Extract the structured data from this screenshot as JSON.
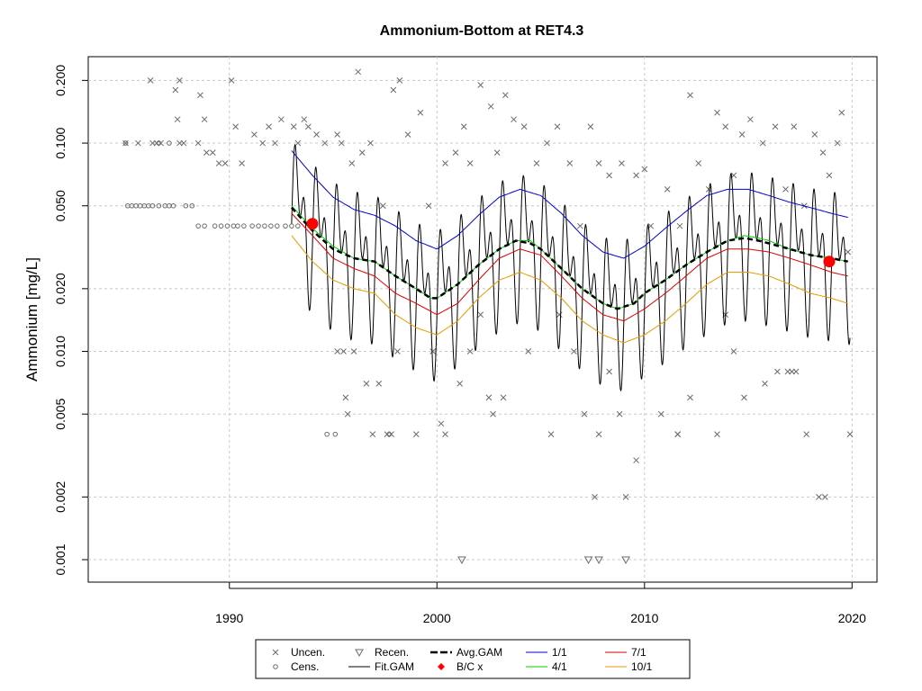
{
  "chart_data": {
    "type": "scatter",
    "title": "Ammonium-Bottom at RET4.3",
    "xlabel": "",
    "ylabel": "Ammonium [mg/L]",
    "y_scale": "log",
    "xlim": [
      1983.2,
      2021.2
    ],
    "ylim": [
      0.00078,
      0.26
    ],
    "grid": true,
    "legend_position": "bottom-center",
    "x_ticks": [
      1990,
      2000,
      2010,
      2020
    ],
    "x_tick_labels": [
      "1990",
      "2000",
      "2010",
      "2020"
    ],
    "y_ticks": [
      0.001,
      0.002,
      0.005,
      0.01,
      0.02,
      0.05,
      0.1,
      0.2
    ],
    "y_tick_labels": [
      "0.001",
      "0.002",
      "0.005",
      "0.010",
      "0.020",
      "0.050",
      "0.100",
      "0.200"
    ],
    "colors": {
      "uncen": "#6b6b6b",
      "fit_gam": "#000000",
      "avg_gam": "#000000",
      "bc": "#ff0000",
      "jan1": "#0000cc",
      "apr1": "#00cc00",
      "jul1": "#dd0000",
      "oct1": "#e89a00",
      "grid": "#c8c8c8"
    },
    "legend": [
      {
        "label": "Uncen.",
        "symbol": "x",
        "color": "#6b6b6b"
      },
      {
        "label": "Cens.",
        "symbol": "o",
        "color": "#6b6b6b"
      },
      {
        "label": "Recen.",
        "symbol": "triangle-down",
        "color": "#6b6b6b"
      },
      {
        "label": "Fit.GAM",
        "symbol": "line",
        "color": "#000000"
      },
      {
        "label": "Avg.GAM",
        "symbol": "dash-line",
        "color": "#000000"
      },
      {
        "label": "B/C x",
        "symbol": "diamond",
        "color": "#ff0000"
      },
      {
        "label": "1/1",
        "symbol": "line",
        "color": "#0000cc"
      },
      {
        "label": "4/1",
        "symbol": "line",
        "color": "#00cc00"
      },
      {
        "label": "7/1",
        "symbol": "line",
        "color": "#dd0000"
      },
      {
        "label": "10/1",
        "symbol": "line",
        "color": "#e89a00"
      }
    ],
    "uncensored": [
      [
        1986.2,
        0.2
      ],
      [
        1987.4,
        0.18
      ],
      [
        1987.6,
        0.2
      ],
      [
        1988.6,
        0.17
      ],
      [
        1990.1,
        0.2
      ],
      [
        1987.5,
        0.13
      ],
      [
        1988.8,
        0.13
      ],
      [
        1985,
        0.1
      ],
      [
        1985.6,
        0.1
      ],
      [
        1986.3,
        0.1
      ],
      [
        1986.5,
        0.1
      ],
      [
        1986.7,
        0.1
      ],
      [
        1987.6,
        0.1
      ],
      [
        1987.8,
        0.1
      ],
      [
        1988.5,
        0.1
      ],
      [
        1988.9,
        0.09
      ],
      [
        1989.2,
        0.09
      ],
      [
        1989.5,
        0.08
      ],
      [
        1989.8,
        0.08
      ],
      [
        1990.3,
        0.12
      ],
      [
        1990.6,
        0.08
      ],
      [
        1991.2,
        0.11
      ],
      [
        1991.6,
        0.1
      ],
      [
        1991.9,
        0.12
      ],
      [
        1992.2,
        0.1
      ],
      [
        1992.5,
        0.13
      ],
      [
        1993.1,
        0.12
      ],
      [
        1993.3,
        0.1
      ],
      [
        1993.6,
        0.13
      ],
      [
        1993.8,
        0.12
      ],
      [
        1994.2,
        0.11
      ],
      [
        1994.6,
        0.1
      ],
      [
        1995.2,
        0.11
      ],
      [
        1995.4,
        0.1
      ],
      [
        1995.9,
        0.08
      ],
      [
        1996.2,
        0.22
      ],
      [
        1996.4,
        0.09
      ],
      [
        1996.8,
        0.1
      ],
      [
        1997.4,
        0.05
      ],
      [
        1997.9,
        0.18
      ],
      [
        1998.2,
        0.2
      ],
      [
        1998.6,
        0.11
      ],
      [
        1999.2,
        0.14
      ],
      [
        1999.6,
        0.05
      ],
      [
        2000.4,
        0.08
      ],
      [
        2000.9,
        0.09
      ],
      [
        2001.3,
        0.12
      ],
      [
        2001.6,
        0.08
      ],
      [
        2002.1,
        0.19
      ],
      [
        2002.6,
        0.15
      ],
      [
        2002.9,
        0.09
      ],
      [
        2003.3,
        0.17
      ],
      [
        2003.7,
        0.13
      ],
      [
        2004.2,
        0.12
      ],
      [
        2004.8,
        0.08
      ],
      [
        2005.3,
        0.1
      ],
      [
        2005.8,
        0.12
      ],
      [
        2006.4,
        0.08
      ],
      [
        2006.9,
        0.04
      ],
      [
        2007.4,
        0.12
      ],
      [
        2007.8,
        0.08
      ],
      [
        2008.3,
        0.07
      ],
      [
        2008.9,
        0.08
      ],
      [
        2009.6,
        0.07
      ],
      [
        2010,
        0.075
      ],
      [
        2010.3,
        0.04
      ],
      [
        2011.1,
        0.06
      ],
      [
        2011.7,
        0.04
      ],
      [
        2012.2,
        0.17
      ],
      [
        2012.6,
        0.08
      ],
      [
        2013.1,
        0.06
      ],
      [
        2013.5,
        0.14
      ],
      [
        2013.9,
        0.12
      ],
      [
        2014.3,
        0.07
      ],
      [
        2014.7,
        0.11
      ],
      [
        2015.1,
        0.13
      ],
      [
        2015.7,
        0.1
      ],
      [
        2016.3,
        0.12
      ],
      [
        2016.8,
        0.06
      ],
      [
        2017.2,
        0.12
      ],
      [
        2017.7,
        0.05
      ],
      [
        2018.2,
        0.11
      ],
      [
        2018.6,
        0.09
      ],
      [
        2018.9,
        0.07
      ],
      [
        2019.3,
        0.1
      ],
      [
        2019.5,
        0.14
      ],
      [
        2019.8,
        0.03
      ],
      [
        1995.2,
        0.01
      ],
      [
        1995.5,
        0.01
      ],
      [
        1996,
        0.01
      ],
      [
        1996.6,
        0.007
      ],
      [
        1997.2,
        0.007
      ],
      [
        1997.6,
        0.004
      ],
      [
        1998.1,
        0.01
      ],
      [
        1999,
        0.004
      ],
      [
        1999.8,
        0.01
      ],
      [
        2000.2,
        0.0045
      ],
      [
        2000.4,
        0.004
      ],
      [
        2001.1,
        0.007
      ],
      [
        2001.6,
        0.01
      ],
      [
        2002.5,
        0.006
      ],
      [
        2002.7,
        0.005
      ],
      [
        2003.2,
        0.006
      ],
      [
        2004.4,
        0.01
      ],
      [
        2005.5,
        0.004
      ],
      [
        2006.6,
        0.01
      ],
      [
        2007.1,
        0.005
      ],
      [
        2007.8,
        0.004
      ],
      [
        2008.3,
        0.008
      ],
      [
        2008.8,
        0.005
      ],
      [
        2009.6,
        0.003
      ],
      [
        2010.8,
        0.005
      ],
      [
        2011.6,
        0.004
      ],
      [
        2012.2,
        0.006
      ],
      [
        2013.5,
        0.004
      ],
      [
        2014.3,
        0.01
      ],
      [
        2014.8,
        0.006
      ],
      [
        2015.8,
        0.007
      ],
      [
        2016.4,
        0.008
      ],
      [
        2016.9,
        0.008
      ],
      [
        2017.3,
        0.008
      ],
      [
        2017.8,
        0.004
      ],
      [
        2018.4,
        0.002
      ],
      [
        2018.7,
        0.002
      ],
      [
        2019.9,
        0.004
      ],
      [
        1995.6,
        0.006
      ],
      [
        1995.7,
        0.005
      ],
      [
        2007.6,
        0.002
      ],
      [
        2009.1,
        0.002
      ],
      [
        1997.8,
        0.004
      ],
      [
        2011.6,
        0.004
      ],
      [
        1996.9,
        0.004
      ],
      [
        2013.9,
        0.015
      ],
      [
        2005.9,
        0.015
      ],
      [
        2002.1,
        0.015
      ],
      [
        2017.1,
        0.008
      ]
    ],
    "censored": [
      [
        1985.1,
        0.05
      ],
      [
        1985.3,
        0.05
      ],
      [
        1985.5,
        0.05
      ],
      [
        1985.7,
        0.05
      ],
      [
        1985.9,
        0.05
      ],
      [
        1986.1,
        0.05
      ],
      [
        1986.3,
        0.05
      ],
      [
        1986.6,
        0.05
      ],
      [
        1986.9,
        0.05
      ],
      [
        1987.1,
        0.05
      ],
      [
        1987.3,
        0.05
      ],
      [
        1987.9,
        0.05
      ],
      [
        1988.2,
        0.05
      ],
      [
        1985,
        0.1
      ],
      [
        1986.6,
        0.1
      ],
      [
        1987.1,
        0.1
      ],
      [
        1988.5,
        0.04
      ],
      [
        1988.8,
        0.04
      ],
      [
        1989.3,
        0.04
      ],
      [
        1989.6,
        0.04
      ],
      [
        1989.9,
        0.04
      ],
      [
        1990.2,
        0.04
      ],
      [
        1990.4,
        0.04
      ],
      [
        1990.7,
        0.04
      ],
      [
        1991.1,
        0.04
      ],
      [
        1991.4,
        0.04
      ],
      [
        1991.7,
        0.04
      ],
      [
        1992,
        0.04
      ],
      [
        1992.3,
        0.04
      ],
      [
        1992.7,
        0.04
      ],
      [
        1993,
        0.04
      ],
      [
        1993.3,
        0.04
      ],
      [
        1994.7,
        0.004
      ],
      [
        1995.1,
        0.004
      ],
      [
        1997.7,
        0.004
      ]
    ],
    "recensored": [
      [
        2001.2,
        0.001
      ],
      [
        2007.3,
        0.001
      ],
      [
        2007.8,
        0.001
      ],
      [
        2009.1,
        0.001
      ]
    ],
    "bc_points": [
      [
        1994,
        0.041
      ],
      [
        2018.9,
        0.027
      ]
    ],
    "fit_gam": {
      "x_range": [
        1993,
        2019.9
      ],
      "period": 1.0,
      "log10_amplitude": 0.44
    },
    "avg_gam": {
      "x": [
        1993,
        1994,
        1995,
        1996,
        1997,
        1998,
        1999,
        1999.7,
        2000,
        2001,
        2002,
        2003,
        2003.8,
        2004.5,
        2005,
        2006,
        2007,
        2008,
        2008.7,
        2009.5,
        2010,
        2011,
        2012,
        2013,
        2014,
        2014.8,
        2015.5,
        2016,
        2017,
        2018,
        2019,
        2019.8
      ],
      "y": [
        0.049,
        0.038,
        0.031,
        0.028,
        0.027,
        0.023,
        0.02,
        0.018,
        0.018,
        0.021,
        0.026,
        0.031,
        0.034,
        0.033,
        0.031,
        0.025,
        0.02,
        0.017,
        0.016,
        0.017,
        0.019,
        0.022,
        0.026,
        0.03,
        0.034,
        0.035,
        0.034,
        0.033,
        0.031,
        0.029,
        0.028,
        0.027
      ]
    },
    "series": [
      {
        "name": "1/1",
        "x": [
          1993,
          1994,
          1995,
          1996,
          1997,
          1998,
          1999,
          2000,
          2001,
          2002,
          2003,
          2004,
          2005,
          2006,
          2007,
          2008,
          2009,
          2010,
          2011,
          2012,
          2013,
          2014,
          2015,
          2016,
          2017,
          2018,
          2019,
          2019.8
        ],
        "y": [
          0.092,
          0.07,
          0.055,
          0.048,
          0.045,
          0.04,
          0.034,
          0.031,
          0.036,
          0.045,
          0.055,
          0.06,
          0.056,
          0.046,
          0.036,
          0.03,
          0.028,
          0.032,
          0.039,
          0.047,
          0.056,
          0.06,
          0.06,
          0.056,
          0.052,
          0.049,
          0.046,
          0.044
        ]
      },
      {
        "name": "4/1",
        "x": [
          1993,
          1994,
          1995,
          1996,
          1997,
          1998,
          1999,
          1999.7,
          2000,
          2001,
          2002,
          2003,
          2003.8,
          2004.5,
          2005,
          2006,
          2007,
          2008,
          2008.7,
          2009.5,
          2010,
          2011,
          2012,
          2013,
          2014,
          2014.8,
          2015.5,
          2016,
          2017,
          2018,
          2019,
          2019.8
        ],
        "y": [
          0.05,
          0.039,
          0.032,
          0.028,
          0.027,
          0.023,
          0.02,
          0.018,
          0.018,
          0.021,
          0.026,
          0.031,
          0.034,
          0.034,
          0.031,
          0.025,
          0.02,
          0.017,
          0.016,
          0.017,
          0.019,
          0.022,
          0.026,
          0.03,
          0.034,
          0.036,
          0.035,
          0.034,
          0.031,
          0.029,
          0.028,
          0.027
        ]
      },
      {
        "name": "7/1",
        "x": [
          1993,
          1994,
          1995,
          1996,
          1997,
          1998,
          1999,
          2000,
          2001,
          2002,
          2003,
          2004,
          2005,
          2006,
          2007,
          2008,
          2009,
          2010,
          2011,
          2012,
          2013,
          2014,
          2015,
          2016,
          2017,
          2018,
          2019,
          2019.8
        ],
        "y": [
          0.046,
          0.036,
          0.028,
          0.025,
          0.023,
          0.019,
          0.017,
          0.015,
          0.017,
          0.022,
          0.028,
          0.031,
          0.029,
          0.023,
          0.018,
          0.015,
          0.014,
          0.016,
          0.019,
          0.023,
          0.028,
          0.031,
          0.031,
          0.03,
          0.028,
          0.026,
          0.024,
          0.023
        ]
      },
      {
        "name": "10/1",
        "x": [
          1993,
          1994,
          1995,
          1996,
          1997,
          1998,
          1999,
          2000,
          2001,
          2002,
          2003,
          2004,
          2005,
          2006,
          2007,
          2008,
          2009,
          2010,
          2011,
          2012,
          2013,
          2014,
          2015,
          2016,
          2017,
          2018,
          2019,
          2019.8
        ],
        "y": [
          0.036,
          0.027,
          0.022,
          0.02,
          0.019,
          0.015,
          0.013,
          0.012,
          0.014,
          0.018,
          0.022,
          0.024,
          0.022,
          0.018,
          0.014,
          0.012,
          0.011,
          0.012,
          0.014,
          0.017,
          0.021,
          0.024,
          0.024,
          0.023,
          0.021,
          0.019,
          0.018,
          0.017
        ]
      }
    ]
  }
}
